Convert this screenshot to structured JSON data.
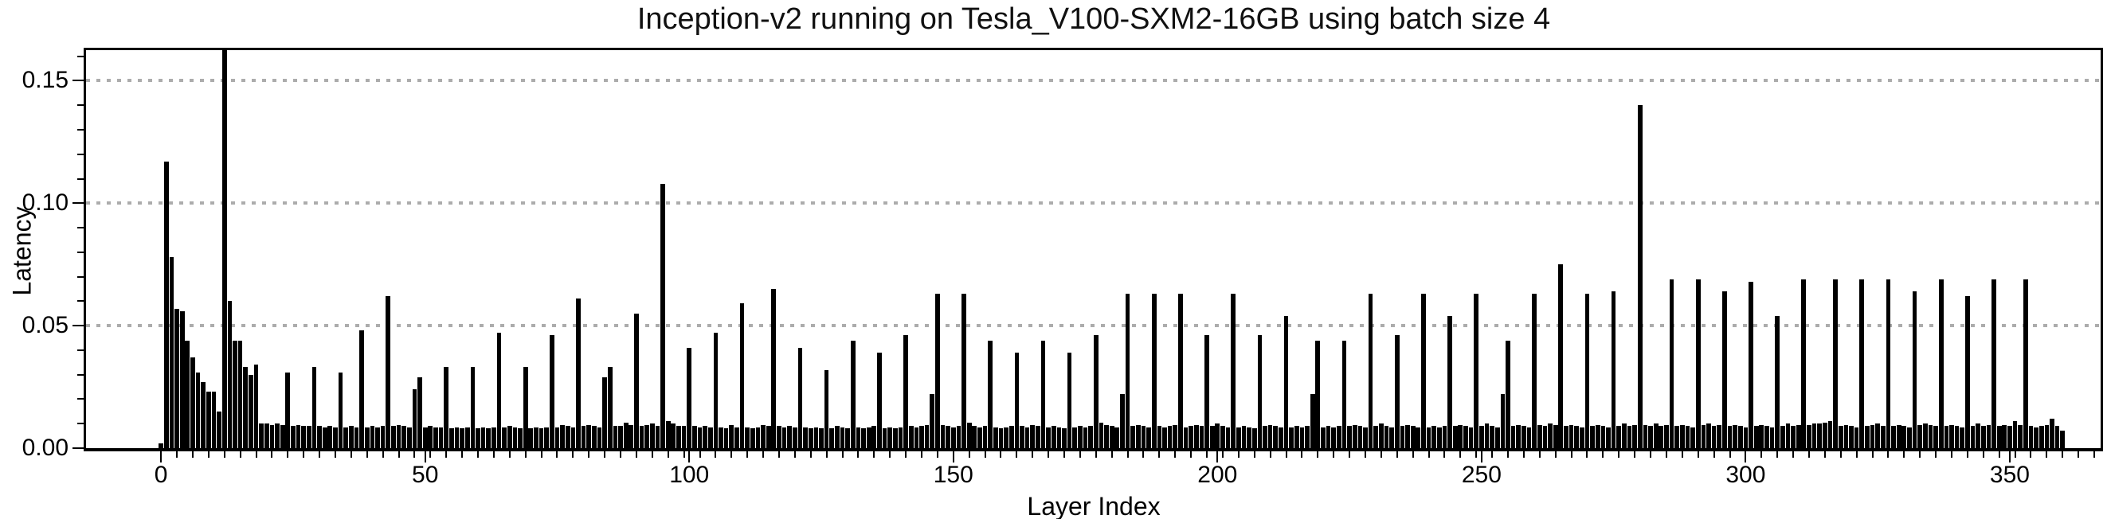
{
  "chart_data": {
    "type": "bar",
    "title": "Inception-v2 running on Tesla_V100-SXM2-16GB using batch size 4",
    "xlabel": "Layer Index",
    "ylabel": "Latency",
    "bar_color": "#000000",
    "background_color": "#ffffff",
    "grid_color": "#acacac",
    "grid_style": "dotted",
    "legend": "none",
    "xlim": [
      -14.2,
      367.2
    ],
    "ylim": [
      0,
      0.1625
    ],
    "y_gridlines": [
      0.05,
      0.1,
      0.15
    ],
    "x_major_ticks": [
      0,
      50,
      100,
      150,
      200,
      250,
      300,
      350
    ],
    "x_tick_labels": [
      "0",
      "50",
      "100",
      "150",
      "200",
      "250",
      "300",
      "350"
    ],
    "x_minor_tick_step": 3,
    "y_major_ticks": [
      0,
      0.05,
      0.1,
      0.15
    ],
    "y_tick_labels": [
      "0.00",
      "0.05",
      "0.10",
      "0.15"
    ],
    "y_minor_tick_step": 0.01,
    "x_start_index": 0,
    "bar_width_units": 0.86,
    "values": [
      0.002,
      0.117,
      0.078,
      0.057,
      0.056,
      0.044,
      0.037,
      0.031,
      0.027,
      0.023,
      0.023,
      0.015,
      0.163,
      0.06,
      0.044,
      0.044,
      0.033,
      0.03,
      0.034,
      0.01,
      0.01,
      0.0095,
      0.01,
      0.0095,
      0.031,
      0.009,
      0.0095,
      0.009,
      0.009,
      0.033,
      0.009,
      0.0085,
      0.009,
      0.0085,
      0.031,
      0.0085,
      0.009,
      0.0085,
      0.048,
      0.0085,
      0.009,
      0.0085,
      0.009,
      0.062,
      0.009,
      0.0095,
      0.009,
      0.0085,
      0.024,
      0.029,
      0.0085,
      0.009,
      0.0085,
      0.0085,
      0.033,
      0.008,
      0.0085,
      0.008,
      0.0085,
      0.033,
      0.008,
      0.0085,
      0.008,
      0.0085,
      0.047,
      0.0085,
      0.009,
      0.0085,
      0.008,
      0.033,
      0.008,
      0.0085,
      0.008,
      0.0085,
      0.046,
      0.0085,
      0.0095,
      0.009,
      0.0085,
      0.061,
      0.009,
      0.0095,
      0.009,
      0.0085,
      0.029,
      0.033,
      0.009,
      0.009,
      0.0105,
      0.0095,
      0.055,
      0.009,
      0.0095,
      0.01,
      0.009,
      0.108,
      0.011,
      0.01,
      0.009,
      0.009,
      0.041,
      0.009,
      0.0085,
      0.009,
      0.0085,
      0.047,
      0.0085,
      0.008,
      0.0095,
      0.0085,
      0.059,
      0.0085,
      0.008,
      0.0085,
      0.0095,
      0.009,
      0.065,
      0.009,
      0.0085,
      0.009,
      0.0085,
      0.041,
      0.0085,
      0.008,
      0.0085,
      0.008,
      0.032,
      0.008,
      0.009,
      0.0085,
      0.008,
      0.044,
      0.0085,
      0.008,
      0.0085,
      0.009,
      0.039,
      0.008,
      0.0085,
      0.008,
      0.0085,
      0.046,
      0.009,
      0.0085,
      0.009,
      0.0095,
      0.022,
      0.063,
      0.0095,
      0.009,
      0.0085,
      0.009,
      0.063,
      0.0105,
      0.009,
      0.0085,
      0.009,
      0.044,
      0.0085,
      0.008,
      0.0085,
      0.009,
      0.039,
      0.009,
      0.0085,
      0.0095,
      0.009,
      0.044,
      0.0085,
      0.009,
      0.0085,
      0.008,
      0.039,
      0.0085,
      0.009,
      0.0085,
      0.009,
      0.046,
      0.0105,
      0.0095,
      0.009,
      0.0085,
      0.022,
      0.063,
      0.009,
      0.0095,
      0.009,
      0.0085,
      0.063,
      0.009,
      0.0085,
      0.009,
      0.0095,
      0.063,
      0.0085,
      0.009,
      0.0095,
      0.009,
      0.046,
      0.009,
      0.01,
      0.009,
      0.0085,
      0.063,
      0.0085,
      0.009,
      0.0085,
      0.008,
      0.046,
      0.009,
      0.0095,
      0.009,
      0.0085,
      0.054,
      0.0085,
      0.009,
      0.0085,
      0.009,
      0.022,
      0.044,
      0.0085,
      0.009,
      0.0085,
      0.009,
      0.044,
      0.009,
      0.0095,
      0.009,
      0.0085,
      0.063,
      0.009,
      0.01,
      0.009,
      0.0085,
      0.046,
      0.009,
      0.0095,
      0.009,
      0.0085,
      0.063,
      0.0085,
      0.009,
      0.0085,
      0.009,
      0.054,
      0.009,
      0.0095,
      0.009,
      0.0085,
      0.063,
      0.009,
      0.01,
      0.009,
      0.0085,
      0.022,
      0.044,
      0.009,
      0.0095,
      0.009,
      0.0085,
      0.063,
      0.0095,
      0.009,
      0.01,
      0.0095,
      0.075,
      0.009,
      0.0095,
      0.009,
      0.0085,
      0.063,
      0.009,
      0.0095,
      0.009,
      0.0085,
      0.064,
      0.009,
      0.01,
      0.009,
      0.0095,
      0.14,
      0.0095,
      0.009,
      0.01,
      0.009,
      0.0095,
      0.069,
      0.009,
      0.0095,
      0.009,
      0.0085,
      0.069,
      0.0095,
      0.01,
      0.009,
      0.0095,
      0.064,
      0.009,
      0.0095,
      0.009,
      0.0085,
      0.068,
      0.009,
      0.0095,
      0.009,
      0.0085,
      0.054,
      0.009,
      0.01,
      0.009,
      0.0095,
      0.069,
      0.0095,
      0.01,
      0.01,
      0.0105,
      0.011,
      0.069,
      0.009,
      0.0095,
      0.009,
      0.0085,
      0.069,
      0.009,
      0.0095,
      0.01,
      0.009,
      0.069,
      0.009,
      0.0095,
      0.009,
      0.0085,
      0.064,
      0.0095,
      0.01,
      0.0095,
      0.009,
      0.069,
      0.009,
      0.0095,
      0.009,
      0.0085,
      0.062,
      0.009,
      0.01,
      0.009,
      0.0095,
      0.069,
      0.009,
      0.0095,
      0.009,
      0.011,
      0.0095,
      0.069,
      0.009,
      0.0085,
      0.009,
      0.0095,
      0.012,
      0.009,
      0.007
    ]
  }
}
